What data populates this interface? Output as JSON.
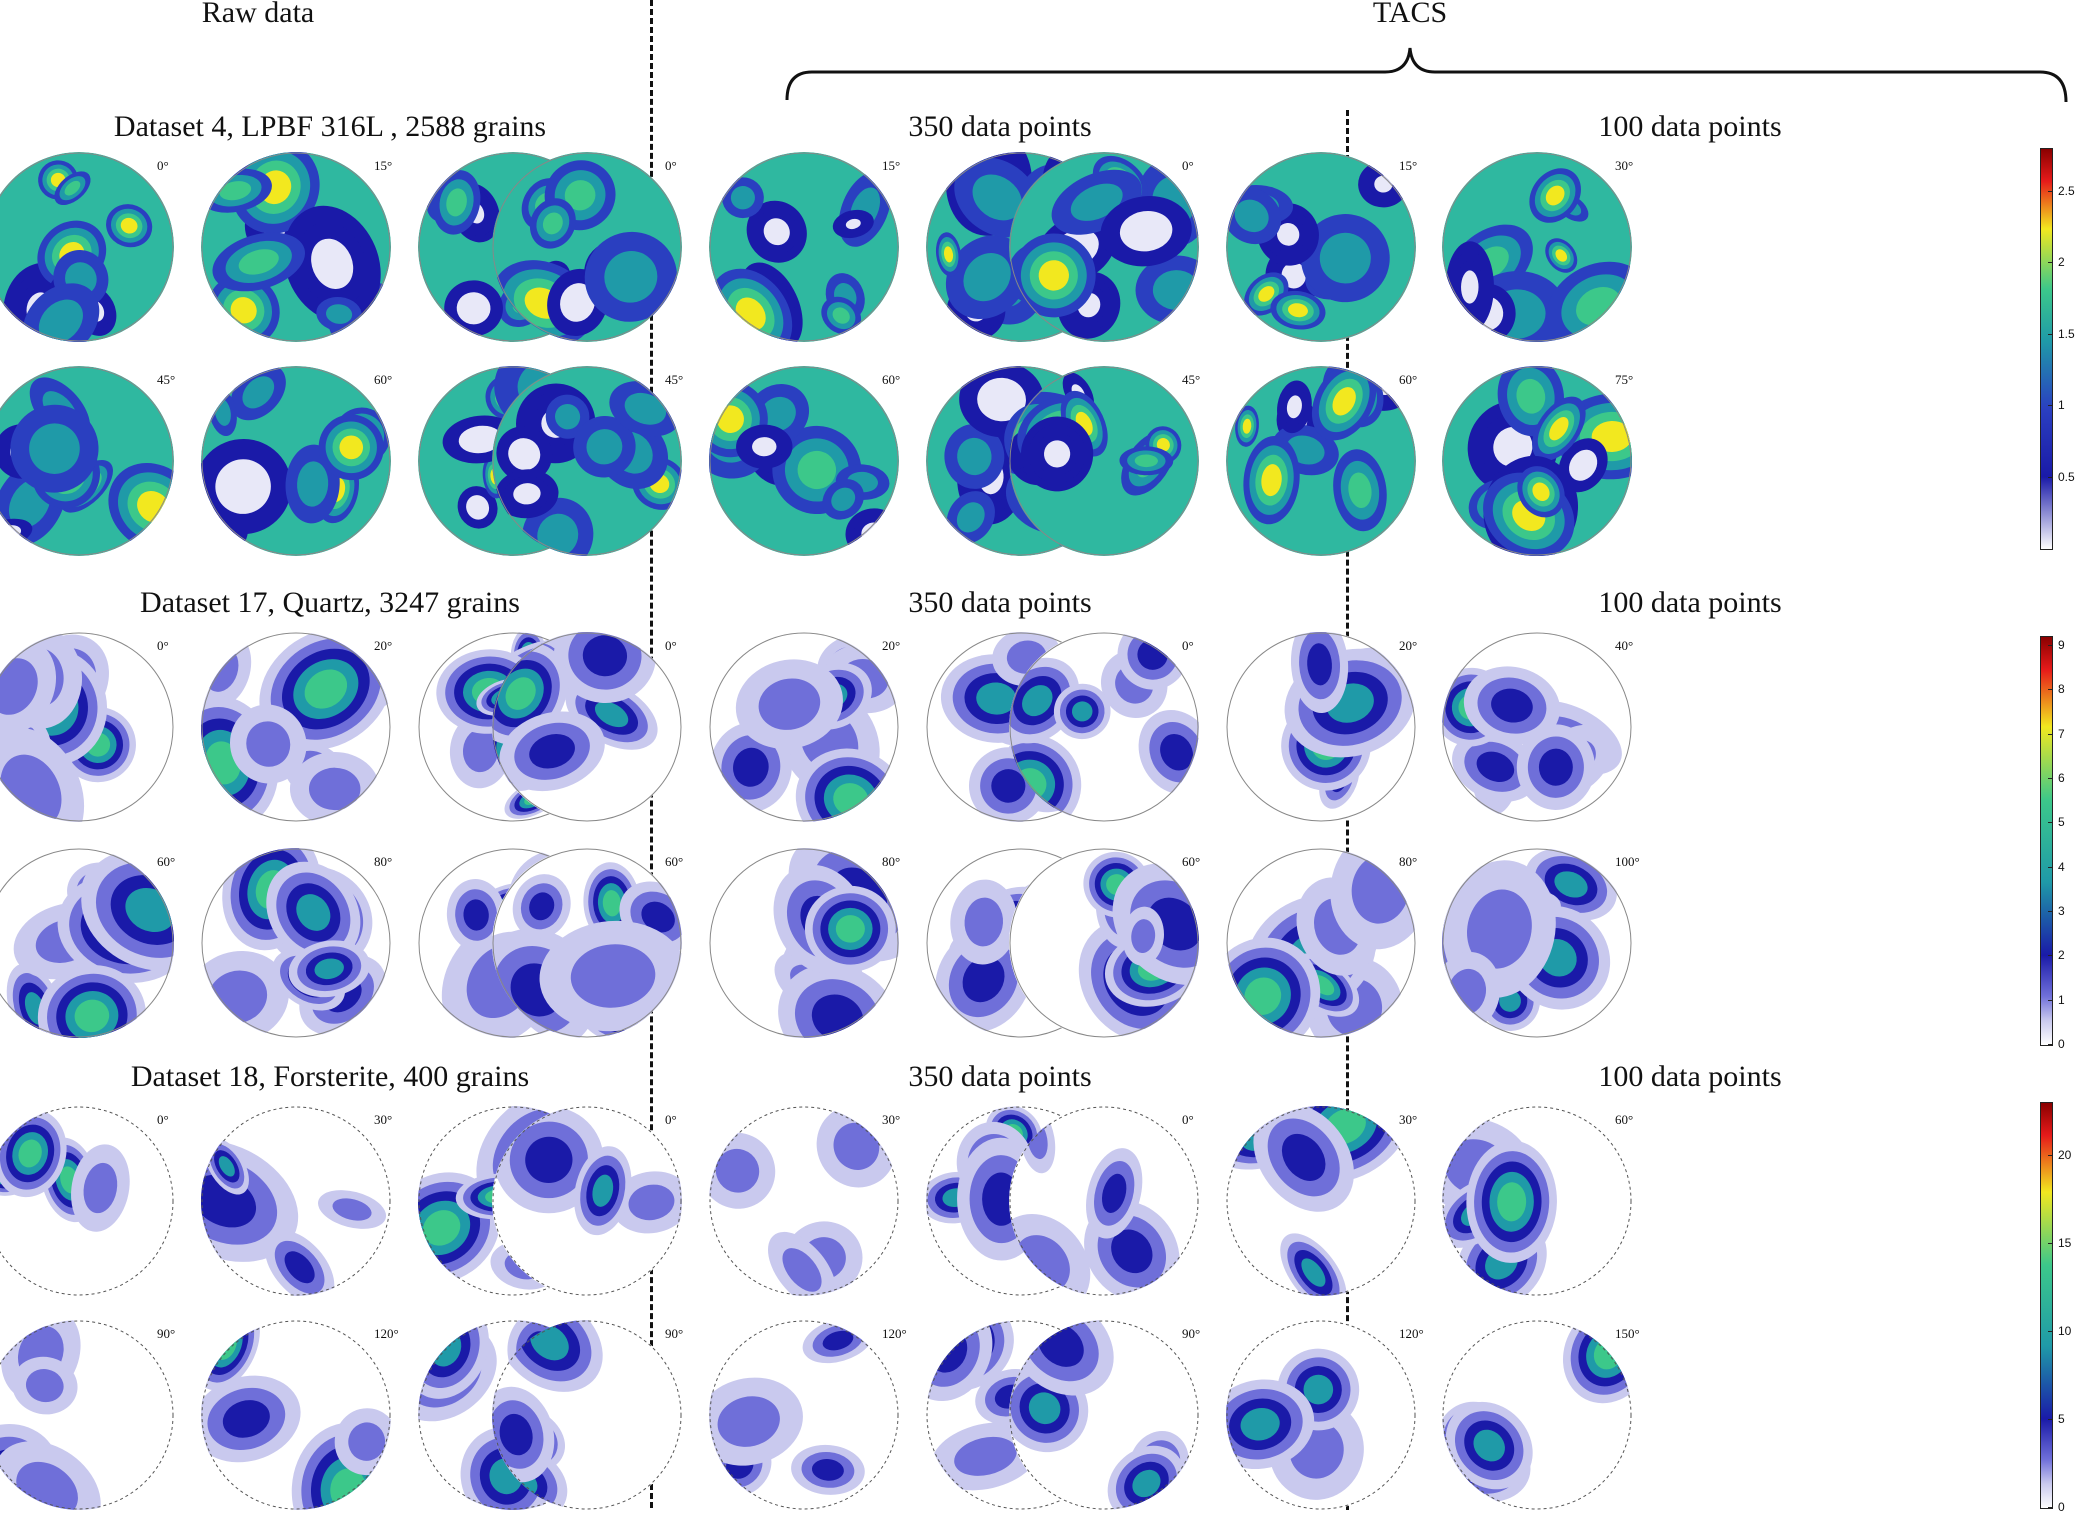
{
  "headers": {
    "raw": "Raw data",
    "tacs": "TACS"
  },
  "rows": [
    {
      "id": "ds4",
      "title": "Dataset 4, LPBF 316L , 2588 grains",
      "tacs_350": "350 data points",
      "tacs_100": "100 data points",
      "angles": [
        "0°",
        "15°",
        "30°",
        "45°",
        "60°",
        "75°"
      ],
      "colorbar": {
        "ticks": [
          "2.5",
          "2",
          "1.5",
          "1",
          "0.5"
        ],
        "tick_values": [
          2.5,
          2,
          1.5,
          1,
          0.5
        ],
        "max": 2.8,
        "min": 0.0
      }
    },
    {
      "id": "ds17",
      "title": "Dataset 17, Quartz, 3247 grains",
      "tacs_350": "350 data points",
      "tacs_100": "100 data points",
      "angles": [
        "0°",
        "20°",
        "40°",
        "60°",
        "80°",
        "100°"
      ],
      "colorbar": {
        "ticks": [
          "9",
          "8",
          "7",
          "6",
          "5",
          "4",
          "3",
          "2",
          "1",
          "0"
        ],
        "tick_values": [
          9,
          8,
          7,
          6,
          5,
          4,
          3,
          2,
          1,
          0
        ],
        "max": 9.2,
        "min": 0.0
      }
    },
    {
      "id": "ds18",
      "title": "Dataset 18, Forsterite, 400 grains",
      "tacs_350": "350 data points",
      "tacs_100": "100 data points",
      "angles": [
        "0°",
        "30°",
        "60°",
        "90°",
        "120°",
        "150°"
      ],
      "colorbar": {
        "ticks": [
          "20",
          "15",
          "10",
          "5",
          "0"
        ],
        "tick_values": [
          20,
          15,
          10,
          5,
          0
        ],
        "max": 23.0,
        "min": 0.0
      }
    }
  ],
  "colors": {
    "white": "#ffffff",
    "lavender": "#c9c9ee",
    "light_blue": "#6f6fd9",
    "dark_blue": "#1a1aa8",
    "cyan": "#1f9aa8",
    "green": "#3cc88a",
    "yellow": "#f2e81f",
    "red": "#e61a1a",
    "dark_red": "#8a0000"
  }
}
